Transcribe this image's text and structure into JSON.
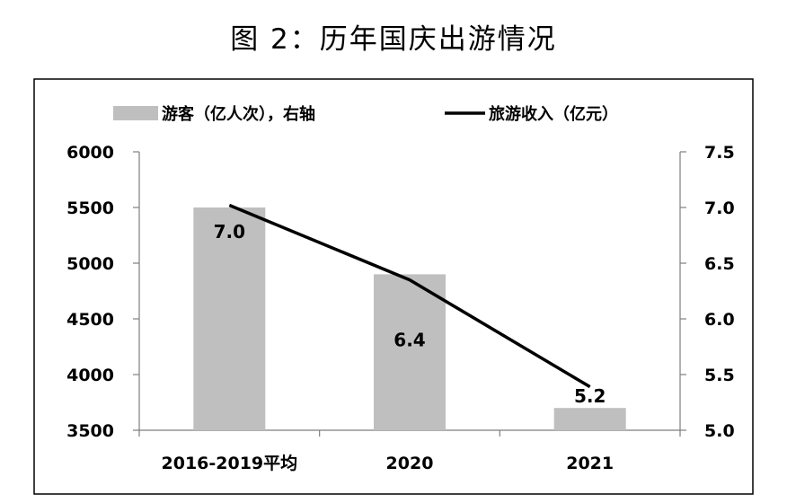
{
  "title": "图 2：历年国庆出游情况",
  "chart_data": {
    "type": "bar+line",
    "categories": [
      "2016-2019平均",
      "2020",
      "2021"
    ],
    "series": [
      {
        "name": "游客（亿人次），右轴",
        "type": "bar",
        "axis": "right",
        "values": [
          7.0,
          6.4,
          5.2
        ],
        "data_labels": [
          "7.0",
          "6.4",
          "5.2"
        ],
        "color": "#bfbfbf"
      },
      {
        "name": "旅游收入（亿元）",
        "type": "line",
        "axis": "left",
        "values": [
          5520,
          4850,
          3890
        ],
        "color": "#000000"
      }
    ],
    "y_left": {
      "lim": [
        3500,
        6000
      ],
      "ticks": [
        "3500",
        "4000",
        "4500",
        "5000",
        "5500",
        "6000"
      ]
    },
    "y_right": {
      "lim": [
        5.0,
        7.5
      ],
      "ticks": [
        "5.0",
        "5.5",
        "6.0",
        "6.5",
        "7.0",
        "7.5"
      ]
    },
    "legend_position": "top",
    "grid": false
  }
}
